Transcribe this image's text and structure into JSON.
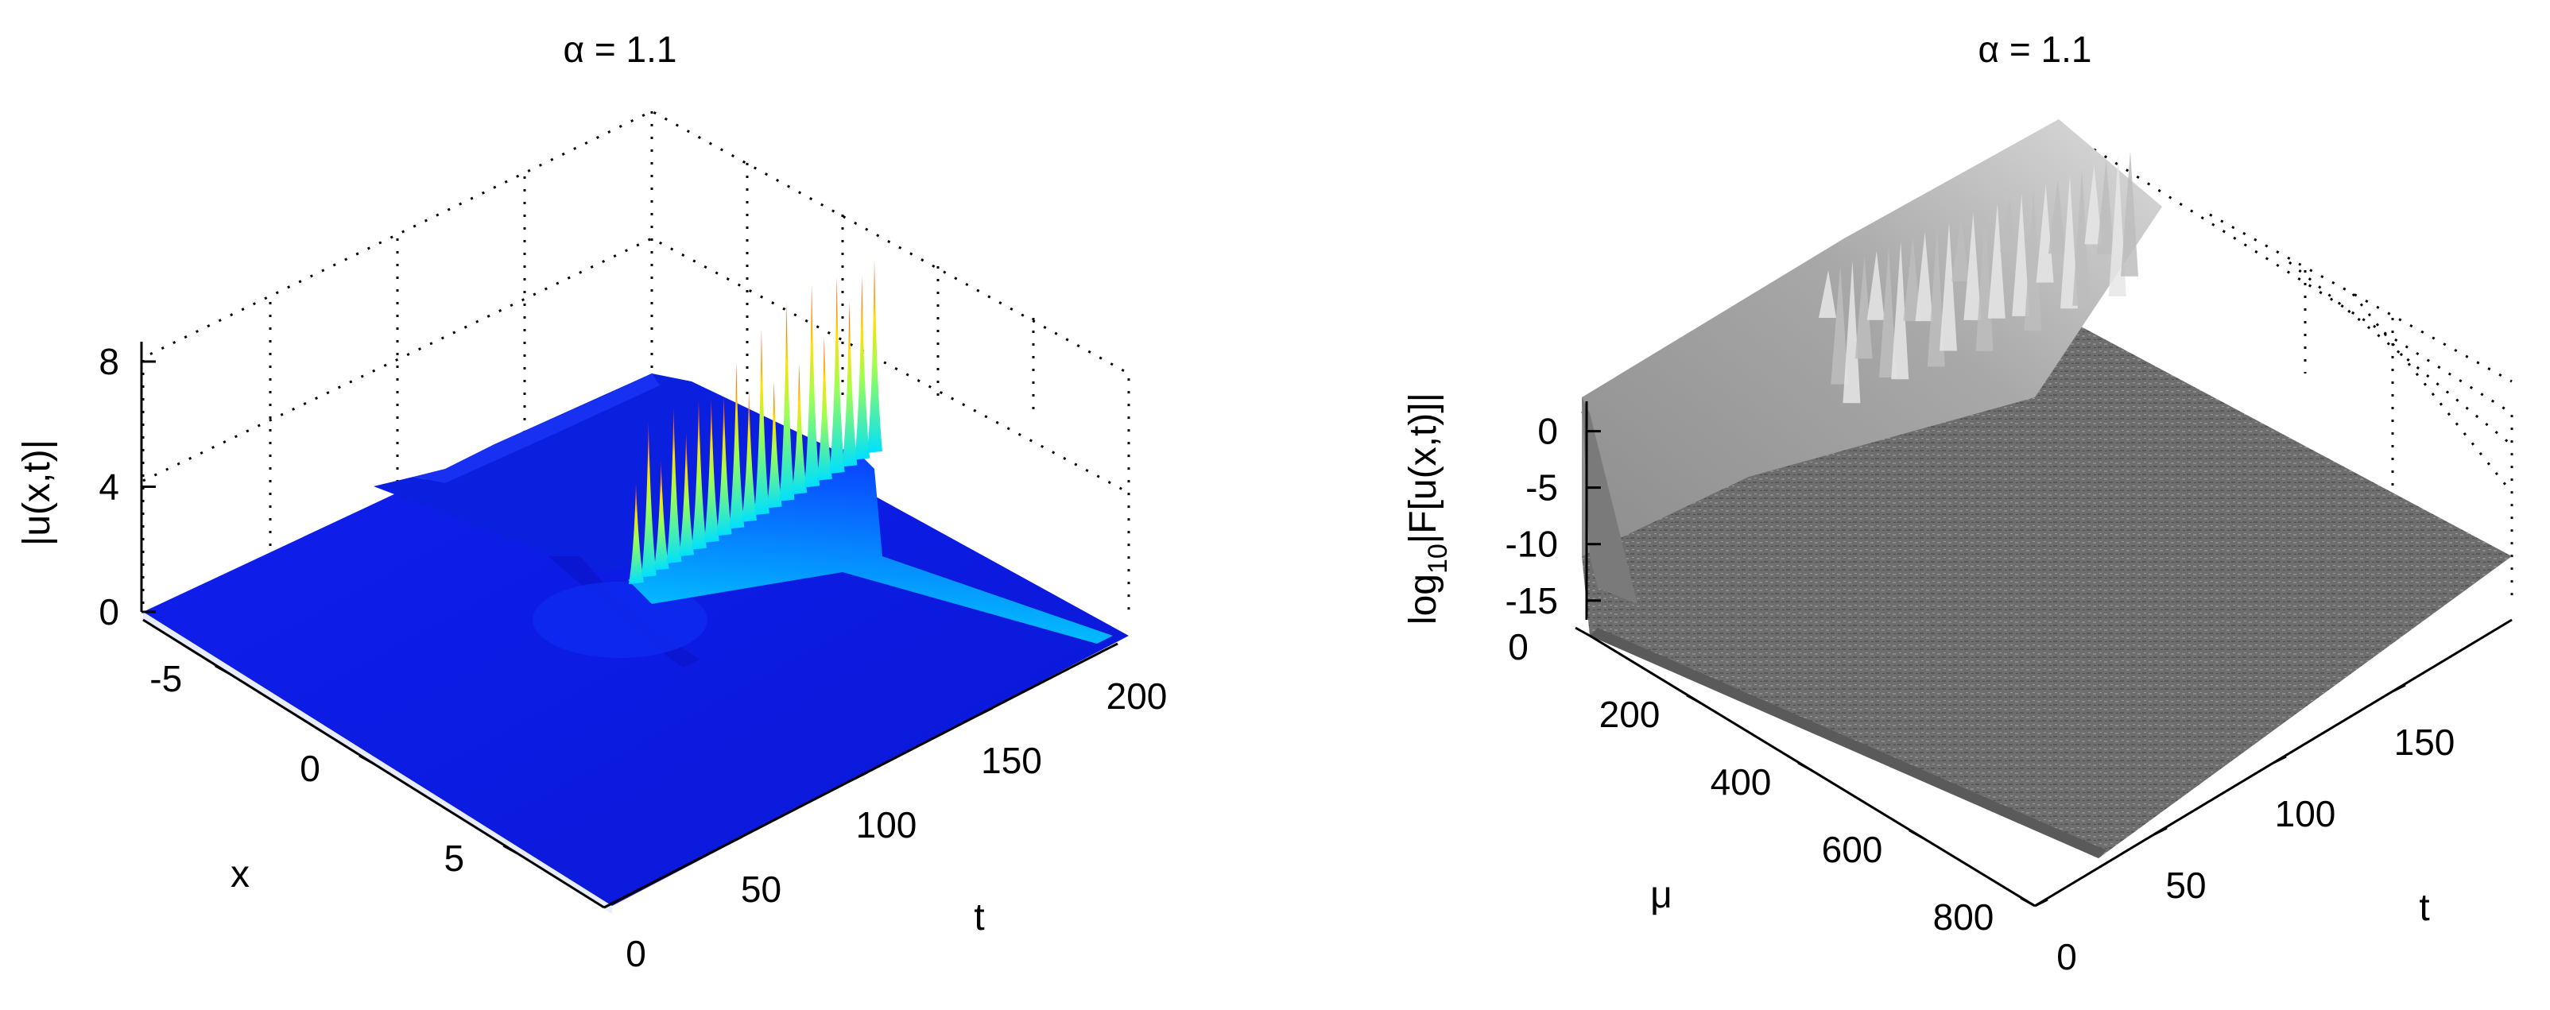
{
  "chart_data": [
    {
      "type": "surface",
      "title": "α = 1.1",
      "xlabel": "x",
      "ylabel": "t",
      "zlabel": "|u(x,t)|",
      "x_ticks": [
        "-5",
        "0",
        "5"
      ],
      "y_ticks": [
        "0",
        "50",
        "100",
        "150",
        "200"
      ],
      "z_ticks": [
        "0",
        "4",
        "8"
      ],
      "xlim": [
        -8,
        8
      ],
      "ylim": [
        0,
        200
      ],
      "zlim": [
        0,
        8
      ],
      "grid": true,
      "colormap": "jet",
      "colors": {
        "low": "#0a17e6",
        "mid": "#00ffff",
        "high": "#ff2000"
      },
      "surface": {
        "baseline_amplitude": 1.0,
        "peak_amplitude_max": 7.0,
        "peak_time_range": [
          95,
          200
        ],
        "peak_count": 20,
        "x_center": 0
      }
    },
    {
      "type": "surface",
      "title": "α = 1.1",
      "xlabel": "μ",
      "ylabel": "t",
      "zlabel": "log10|F[u(x,t)]|",
      "zlabel_parts": {
        "prefix": "log",
        "subscript": "10",
        "rest": "|F[u(x,t)]|"
      },
      "x_ticks": [
        "0",
        "200",
        "400",
        "600",
        "800"
      ],
      "y_ticks": [
        "0",
        "50",
        "100",
        "150"
      ],
      "z_ticks": [
        "0",
        "-5",
        "-10",
        "-15"
      ],
      "xlim": [
        0,
        800
      ],
      "ylim": [
        0,
        200
      ],
      "zlim": [
        -16,
        3
      ],
      "grid": true,
      "colormap": "gray",
      "colors": {
        "surface": "#777777",
        "plateau": "#9a9a9a",
        "light": "#cfcfcf"
      },
      "surface": {
        "plateau_level": 2,
        "noise_floor": -15,
        "spread_start_time": 95
      }
    }
  ]
}
